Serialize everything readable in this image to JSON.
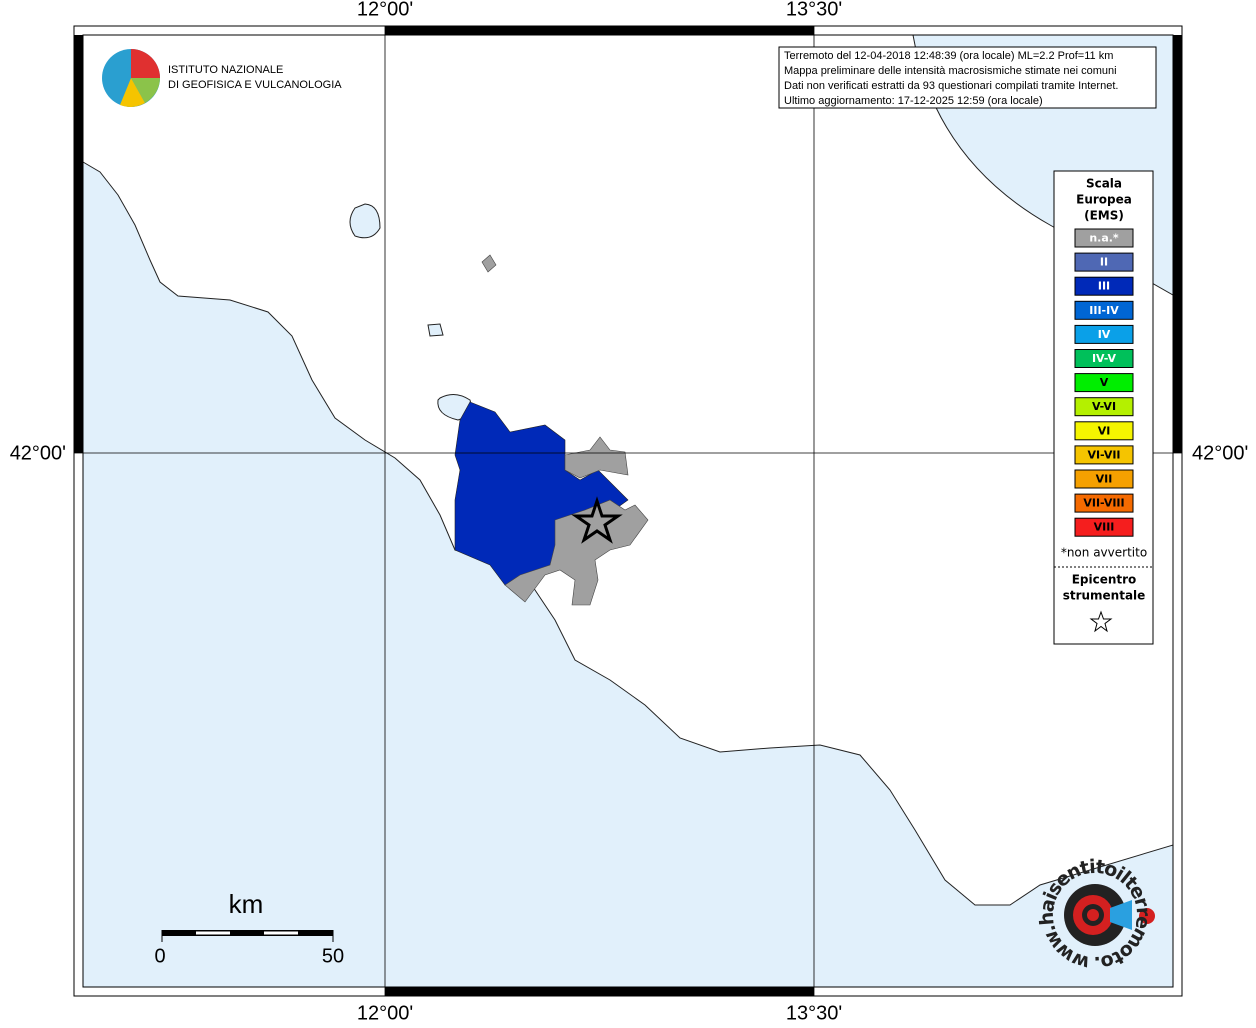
{
  "axis_labels": {
    "lon_left": "12°00'",
    "lon_right": "13°30'",
    "lat": "42°00'"
  },
  "logo": {
    "line1": "ISTITUTO NAZIONALE",
    "line2": "DI GEOFISICA E VULCANOLOGIA"
  },
  "info": [
    "Terremoto del 12-04-2018 12:48:39 (ora locale) ML=2.2 Prof=11 km",
    "Mappa preliminare delle intensità macrosismiche stimate nei comuni",
    "Dati non verificati estratti da 93 questionari compilati tramite Internet.",
    "Ultimo aggiornamento: 17-12-2025 12:59 (ora locale)"
  ],
  "legend": {
    "title": [
      "Scala",
      "Europea",
      "(EMS)"
    ],
    "items": [
      {
        "label": "n.a.*",
        "color": "#a0a0a0"
      },
      {
        "label": "II",
        "color": "#4f68b4"
      },
      {
        "label": "III",
        "color": "#0029b8"
      },
      {
        "label": "III-IV",
        "color": "#0066d4"
      },
      {
        "label": "IV",
        "color": "#0aa0e8"
      },
      {
        "label": "IV-V",
        "color": "#00c05a"
      },
      {
        "label": "V",
        "color": "#00ee00"
      },
      {
        "label": "V-VI",
        "color": "#b4f000"
      },
      {
        "label": "VI",
        "color": "#f5f500"
      },
      {
        "label": "VI-VII",
        "color": "#f5c400"
      },
      {
        "label": "VII",
        "color": "#f5a000"
      },
      {
        "label": "VII-VIII",
        "color": "#f56a00"
      },
      {
        "label": "VIII",
        "color": "#f51e1e"
      }
    ],
    "note": "*non avvertito",
    "epicenter": [
      "Epicentro",
      "strumentale"
    ]
  },
  "scale_bar": {
    "unit": "km",
    "start": "0",
    "end": "50"
  },
  "site_logo": "www.haisentitoilterremoto.it"
}
